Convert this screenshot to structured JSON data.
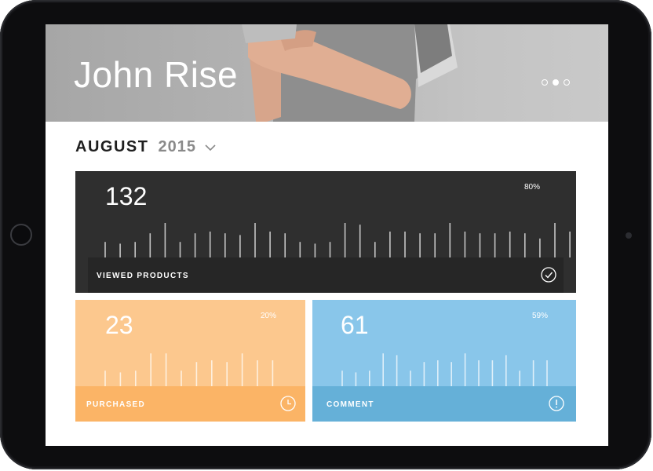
{
  "profile": {
    "name": "John Rise"
  },
  "carousel": {
    "dots": 3,
    "active_index": 1
  },
  "period": {
    "month": "AUGUST",
    "year": "2015"
  },
  "cards": [
    {
      "id": "viewed",
      "value": "132",
      "percent": "80%",
      "label": "VIEWED PRODUCTS",
      "icon": "check-circle-icon",
      "background": "#2f2f2f",
      "footer_color": "#262626",
      "bar_levels": [
        0.45,
        0.4,
        0.45,
        0.7,
        1.0,
        0.45,
        0.7,
        0.75,
        0.7,
        0.65,
        1.0,
        0.75,
        0.7,
        0.45,
        0.4,
        0.45,
        1.0,
        0.95,
        0.45,
        0.75,
        0.75,
        0.7,
        0.7,
        1.0,
        0.75,
        0.7,
        0.7,
        0.75,
        0.7,
        0.55,
        1.0,
        0.75
      ]
    },
    {
      "id": "purchased",
      "value": "23",
      "percent": "20%",
      "label": "PURCHASED",
      "icon": "clock-icon",
      "background": "#fcc88e",
      "footer_color": "#fbb466",
      "bar_levels": [
        0.45,
        0.4,
        0.45,
        0.95,
        0.95,
        0.45,
        0.7,
        0.75,
        0.7,
        0.95,
        0.75,
        0.75
      ]
    },
    {
      "id": "comment",
      "value": "61",
      "percent": "59%",
      "label": "COMMENT",
      "icon": "exclamation-circle-icon",
      "background": "#89c6ea",
      "footer_color": "#65b0d8",
      "bar_levels": [
        0.45,
        0.4,
        0.45,
        0.95,
        0.9,
        0.45,
        0.7,
        0.75,
        0.7,
        0.95,
        0.75,
        0.75,
        0.9,
        0.45,
        0.75,
        0.75
      ]
    }
  ]
}
